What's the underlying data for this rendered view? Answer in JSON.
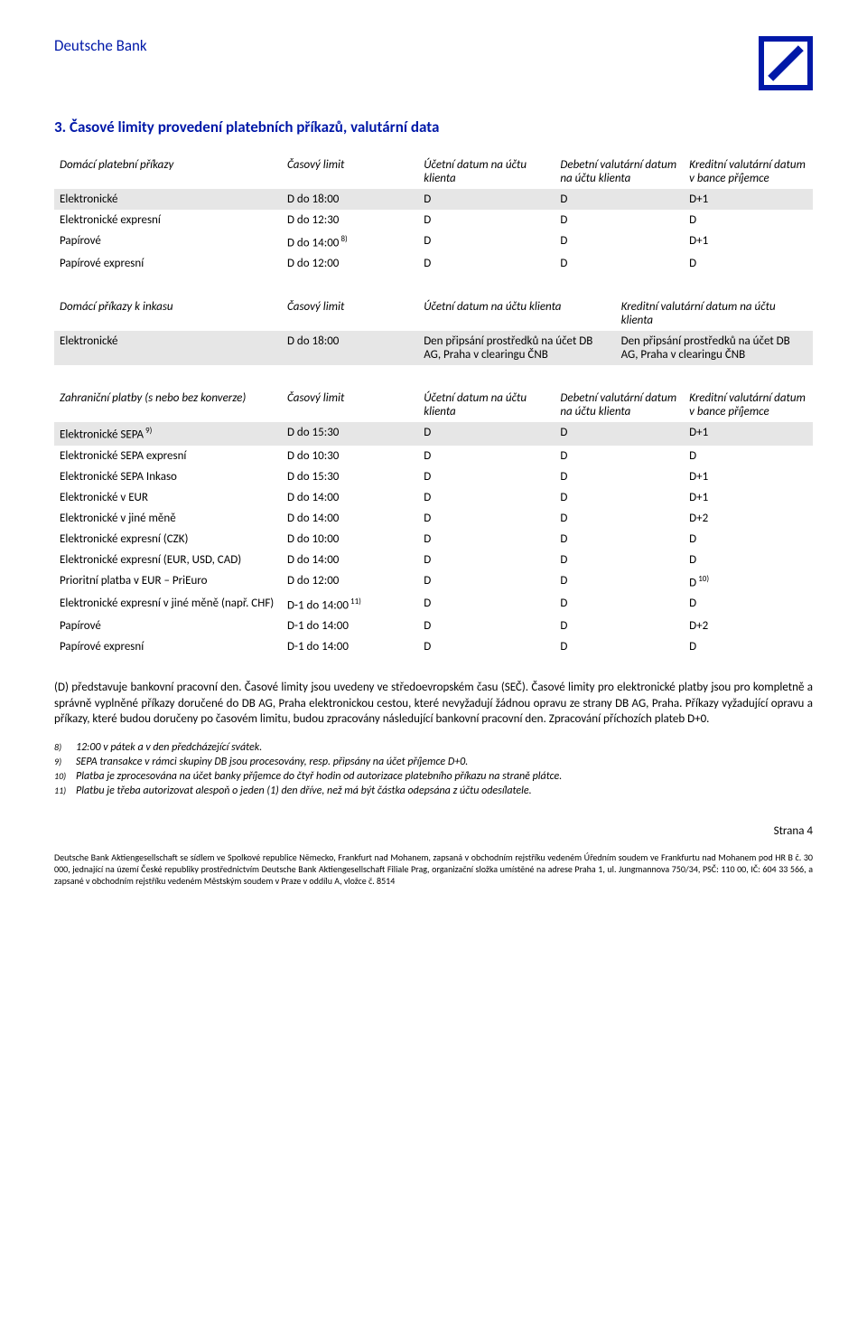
{
  "header": {
    "brand": "Deutsche Bank"
  },
  "section_title": "3. Časové limity provedení platebních příkazů, valutární data",
  "table1": {
    "headers": [
      "Domácí platební příkazy",
      "Časový limit",
      "Účetní datum na účtu klienta",
      "Debetní valutární datum na účtu klienta",
      "Kreditní valutární datum v bance příjemce"
    ],
    "rows": [
      {
        "label": "Elektronické",
        "time": "D do 18:00",
        "c1": "D",
        "c2": "D",
        "c3": "D+1",
        "highlight": true
      },
      {
        "label": "Elektronické expresní",
        "time": "D do 12:30",
        "c1": "D",
        "c2": "D",
        "c3": "D"
      },
      {
        "label": "Papírové",
        "time": "D do 14:00",
        "time_sup": "8)",
        "c1": "D",
        "c2": "D",
        "c3": "D+1"
      },
      {
        "label": "Papírové expresní",
        "time": "D do 12:00",
        "c1": "D",
        "c2": "D",
        "c3": "D"
      }
    ]
  },
  "table2": {
    "headers": [
      "Domácí příkazy k inkasu",
      "Časový limit",
      "Účetní datum na účtu klienta",
      "Kreditní valutární datum na účtu klienta"
    ],
    "rows": [
      {
        "label": "Elektronické",
        "time": "D do 18:00",
        "c1": "Den připsání prostředků na účet DB AG, Praha v clearingu ČNB",
        "c2": "Den připsání prostředků na účet DB AG, Praha v clearingu ČNB",
        "highlight": true
      }
    ]
  },
  "table3": {
    "headers": [
      "Zahraniční platby (s nebo bez konverze)",
      "Časový limit",
      "Účetní datum na účtu klienta",
      "Debetní valutární datum na účtu klienta",
      "Kreditní valutární datum v bance příjemce"
    ],
    "rows": [
      {
        "label": "Elektronické SEPA",
        "label_sup": "9)",
        "time": "D do 15:30",
        "c1": "D",
        "c2": "D",
        "c3": "D+1",
        "highlight": true
      },
      {
        "label": "Elektronické SEPA expresní",
        "time": "D do 10:30",
        "c1": "D",
        "c2": "D",
        "c3": "D"
      },
      {
        "label": "Elektronické SEPA Inkaso",
        "time": "D do 15:30",
        "c1": "D",
        "c2": "D",
        "c3": "D+1"
      },
      {
        "label": "Elektronické v EUR",
        "time": "D do 14:00",
        "c1": "D",
        "c2": "D",
        "c3": "D+1"
      },
      {
        "label": "Elektronické v jiné měně",
        "time": "D do 14:00",
        "c1": "D",
        "c2": "D",
        "c3": "D+2"
      },
      {
        "label": "Elektronické expresní (CZK)",
        "time": "D do 10:00",
        "c1": "D",
        "c2": "D",
        "c3": "D"
      },
      {
        "label": "Elektronické expresní (EUR, USD, CAD)",
        "time": "D do 14:00",
        "c1": "D",
        "c2": "D",
        "c3": "D"
      },
      {
        "label": "Prioritní platba v EUR – PriEuro",
        "time": "D do 12:00",
        "c1": "D",
        "c2": "D",
        "c3": "D",
        "c3_sup": "10)"
      },
      {
        "label": "Elektronické expresní v jiné měně (např. CHF)",
        "time": "D-1 do 14:00",
        "time_sup": "11)",
        "c1": "D",
        "c2": "D",
        "c3": "D"
      },
      {
        "label": "Papírové",
        "time": "D-1 do 14:00",
        "c1": "D",
        "c2": "D",
        "c3": "D+2"
      },
      {
        "label": "Papírové expresní",
        "time": "D-1 do 14:00",
        "c1": "D",
        "c2": "D",
        "c3": "D"
      }
    ]
  },
  "paragraph": "(D) představuje bankovní pracovní den. Časové limity jsou uvedeny ve středoevropském času (SEČ). Časové limity pro elektronické platby jsou pro kompletně a správně vyplněné příkazy doručené do DB AG, Praha elektronickou cestou, které nevyžadují žádnou opravu ze strany DB AG, Praha. Příkazy vyžadující opravu a příkazy, které budou doručeny po časovém limitu, budou zpracovány následující bankovní pracovní den. Zpracování příchozích plateb D+0.",
  "footnotes": [
    {
      "num": "8)",
      "text": "12:00 v pátek a v den předcházející svátek."
    },
    {
      "num": "9)",
      "text": "SEPA transakce v rámci skupiny DB jsou procesovány, resp. připsány na účet příjemce D+0."
    },
    {
      "num": "10)",
      "text": "Platba je zprocesována na účet banky příjemce do čtyř hodin od autorizace platebního příkazu na straně plátce."
    },
    {
      "num": "11)",
      "text": "Platbu je třeba autorizovat alespoň o jeden (1) den dříve, než má být částka odepsána z účtu odesílatele."
    }
  ],
  "page_num": "Strana 4",
  "legal": "Deutsche Bank Aktiengesellschaft se sídlem ve Spolkové republice Německo, Frankfurt nad Mohanem, zapsaná v obchodním rejstříku vedeném Úředním soudem ve Frankfurtu nad Mohanem pod HR B č. 30 000, jednající na území České republiky prostřednictvím Deutsche Bank Aktiengesellschaft Filiale Prag, organizační složka umístěné na adrese Praha 1, ul. Jungmannova 750/34, PSČ: 110 00, IČ: 604 33 566, a zapsané v obchodním rejstříku vedeném Městským soudem v Praze v oddílu A, vložce č. 8514"
}
